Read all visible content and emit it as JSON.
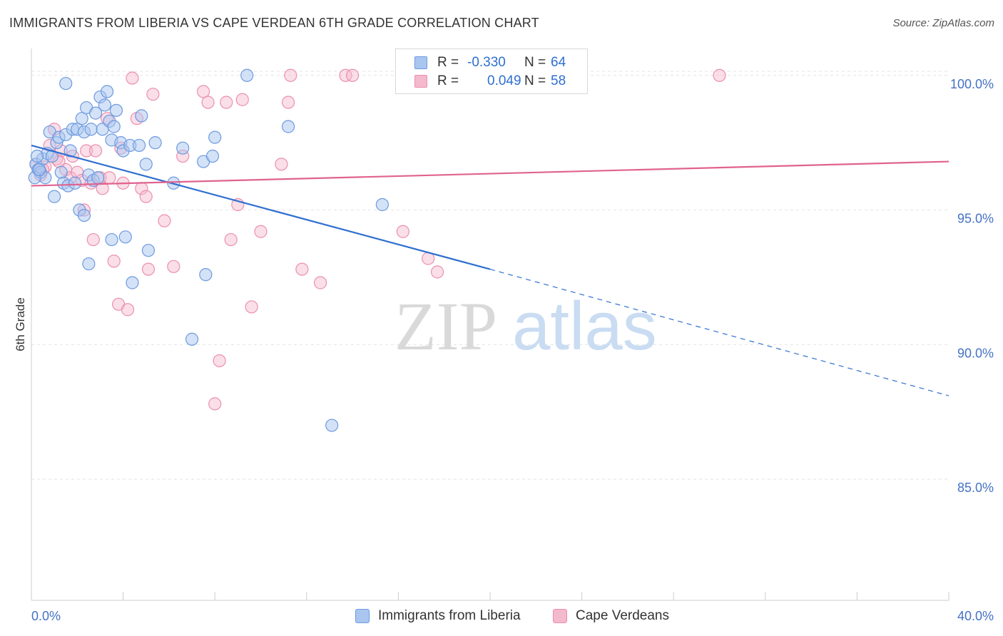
{
  "title": "IMMIGRANTS FROM LIBERIA VS CAPE VERDEAN 6TH GRADE CORRELATION CHART",
  "source": "Source: ZipAtlas.com",
  "watermark": {
    "zip": "ZIP",
    "atlas": "atlas"
  },
  "legend": {
    "rows": [
      {
        "r_label": "R =",
        "r_value": "-0.330",
        "n_label": "N =",
        "n_value": "64"
      },
      {
        "r_label": "R =",
        "r_value": "0.049",
        "n_label": "N =",
        "n_value": "58"
      }
    ]
  },
  "bottom_legend": {
    "series1": "Immigrants from Liberia",
    "series2": "Cape Verdeans"
  },
  "colors": {
    "blue_fill": "#a9c6f0",
    "blue_stroke": "#6d9ae0",
    "blue_line": "#2f6fd0",
    "pink_fill": "#f4b9cc",
    "pink_stroke": "#ec8fae",
    "pink_line": "#e0628f",
    "axis_text": "#4472c4",
    "grid": "#e4e4e4"
  },
  "chart_data": {
    "type": "scatter",
    "title": "IMMIGRANTS FROM LIBERIA VS CAPE VERDEAN 6TH GRADE CORRELATION CHART",
    "xlabel": "",
    "ylabel": "6th Grade",
    "xlim": [
      0,
      40
    ],
    "ylim": [
      80.5,
      101
    ],
    "x_tick_labels": [
      "0.0%",
      "40.0%"
    ],
    "y_ticks": [
      85,
      90,
      95,
      100
    ],
    "y_tick_labels": [
      "85.0%",
      "90.0%",
      "95.0%",
      "100.0%"
    ],
    "grid": true,
    "legend_position": "top-center",
    "series": [
      {
        "name": "Immigrants from Liberia",
        "R": -0.33,
        "N": 64,
        "trend": {
          "x": [
            0,
            20
          ],
          "y": [
            97.4,
            92.8
          ],
          "dashed_extension_to": [
            40,
            88.1
          ]
        },
        "points": [
          [
            0.2,
            96.7
          ],
          [
            0.3,
            96.5
          ],
          [
            0.4,
            96.4
          ],
          [
            0.5,
            96.9
          ],
          [
            0.6,
            96.2
          ],
          [
            0.7,
            97.1
          ],
          [
            0.8,
            97.9
          ],
          [
            0.9,
            97.0
          ],
          [
            1.0,
            95.5
          ],
          [
            1.1,
            97.5
          ],
          [
            1.2,
            97.7
          ],
          [
            1.3,
            96.4
          ],
          [
            1.4,
            96.0
          ],
          [
            1.5,
            97.8
          ],
          [
            1.6,
            95.9
          ],
          [
            1.7,
            97.2
          ],
          [
            1.5,
            99.7
          ],
          [
            1.8,
            98.0
          ],
          [
            1.9,
            96.0
          ],
          [
            2.0,
            98.0
          ],
          [
            2.1,
            95.0
          ],
          [
            2.2,
            98.4
          ],
          [
            2.3,
            97.9
          ],
          [
            2.4,
            98.8
          ],
          [
            2.5,
            96.3
          ],
          [
            2.6,
            98.0
          ],
          [
            2.7,
            96.1
          ],
          [
            2.8,
            98.6
          ],
          [
            2.9,
            96.2
          ],
          [
            3.0,
            99.2
          ],
          [
            3.1,
            98.0
          ],
          [
            3.2,
            98.9
          ],
          [
            3.3,
            99.4
          ],
          [
            3.4,
            98.3
          ],
          [
            3.5,
            97.6
          ],
          [
            3.6,
            98.1
          ],
          [
            3.7,
            98.7
          ],
          [
            3.5,
            93.9
          ],
          [
            2.5,
            93.0
          ],
          [
            2.3,
            94.8
          ],
          [
            3.9,
            97.5
          ],
          [
            4.0,
            97.2
          ],
          [
            4.1,
            94.0
          ],
          [
            4.3,
            97.4
          ],
          [
            4.4,
            92.3
          ],
          [
            4.7,
            97.4
          ],
          [
            4.8,
            98.5
          ],
          [
            5.0,
            96.7
          ],
          [
            5.1,
            93.5
          ],
          [
            5.4,
            97.5
          ],
          [
            6.2,
            96.0
          ],
          [
            6.6,
            97.3
          ],
          [
            7.0,
            90.2
          ],
          [
            7.5,
            96.8
          ],
          [
            7.6,
            92.6
          ],
          [
            7.9,
            97.0
          ],
          [
            8.0,
            97.7
          ],
          [
            9.4,
            100.0
          ],
          [
            11.2,
            98.1
          ],
          [
            13.1,
            87.0
          ],
          [
            15.3,
            95.2
          ],
          [
            0.15,
            96.2
          ],
          [
            0.25,
            97.0
          ],
          [
            0.35,
            96.5
          ]
        ]
      },
      {
        "name": "Cape Verdeans",
        "R": 0.049,
        "N": 58,
        "trend": {
          "x": [
            0,
            40
          ],
          "y": [
            95.9,
            96.8
          ]
        },
        "points": [
          [
            0.2,
            96.7
          ],
          [
            0.4,
            96.3
          ],
          [
            0.6,
            96.6
          ],
          [
            0.8,
            97.4
          ],
          [
            1.0,
            98.0
          ],
          [
            1.1,
            96.9
          ],
          [
            1.3,
            97.2
          ],
          [
            1.5,
            96.5
          ],
          [
            1.7,
            96.2
          ],
          [
            1.8,
            97.0
          ],
          [
            2.0,
            96.4
          ],
          [
            2.2,
            96.1
          ],
          [
            2.3,
            95.0
          ],
          [
            2.4,
            97.2
          ],
          [
            2.7,
            93.9
          ],
          [
            2.8,
            97.2
          ],
          [
            3.0,
            96.2
          ],
          [
            3.1,
            95.8
          ],
          [
            3.3,
            98.4
          ],
          [
            3.4,
            96.2
          ],
          [
            3.6,
            93.1
          ],
          [
            3.8,
            91.5
          ],
          [
            3.9,
            97.3
          ],
          [
            4.0,
            96.0
          ],
          [
            4.2,
            91.3
          ],
          [
            4.4,
            99.9
          ],
          [
            4.6,
            98.4
          ],
          [
            4.8,
            95.8
          ],
          [
            5.0,
            95.5
          ],
          [
            5.1,
            92.8
          ],
          [
            5.3,
            99.3
          ],
          [
            5.8,
            94.6
          ],
          [
            6.2,
            92.9
          ],
          [
            6.6,
            97.0
          ],
          [
            7.5,
            99.4
          ],
          [
            7.7,
            99.0
          ],
          [
            8.0,
            87.8
          ],
          [
            8.2,
            89.4
          ],
          [
            8.5,
            99.0
          ],
          [
            8.7,
            93.9
          ],
          [
            9.0,
            95.2
          ],
          [
            9.2,
            99.1
          ],
          [
            9.6,
            91.4
          ],
          [
            10.0,
            94.2
          ],
          [
            10.9,
            96.7
          ],
          [
            11.2,
            99.0
          ],
          [
            11.3,
            100.0
          ],
          [
            11.8,
            92.8
          ],
          [
            12.6,
            92.3
          ],
          [
            13.7,
            100.0
          ],
          [
            14.0,
            100.0
          ],
          [
            16.2,
            94.2
          ],
          [
            17.3,
            93.2
          ],
          [
            17.7,
            92.7
          ],
          [
            30.0,
            100.0
          ],
          [
            0.5,
            96.5
          ],
          [
            1.2,
            96.8
          ],
          [
            2.6,
            96.0
          ]
        ]
      }
    ]
  }
}
